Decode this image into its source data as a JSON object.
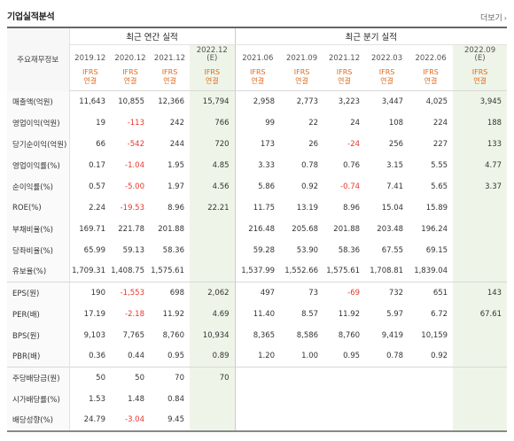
{
  "header": {
    "title": "기업실적분석",
    "more": "더보기"
  },
  "table": {
    "label_header": "주요재무정보",
    "group_annual": "최근 연간 실적",
    "group_quarter": "최근 분기 실적",
    "ifrs_top": "IFRS",
    "ifrs_bottom": "연결",
    "periods": [
      {
        "date": "2019.12",
        "est": ""
      },
      {
        "date": "2020.12",
        "est": ""
      },
      {
        "date": "2021.12",
        "est": ""
      },
      {
        "date": "2022.12",
        "est": "(E)"
      },
      {
        "date": "2021.06",
        "est": ""
      },
      {
        "date": "2021.09",
        "est": ""
      },
      {
        "date": "2021.12",
        "est": ""
      },
      {
        "date": "2022.03",
        "est": ""
      },
      {
        "date": "2022.06",
        "est": ""
      },
      {
        "date": "2022.09",
        "est": "(E)"
      }
    ],
    "rows": [
      {
        "label": "매출액(억원)",
        "values": [
          "11,643",
          "10,855",
          "12,366",
          "15,794",
          "2,958",
          "2,773",
          "3,223",
          "3,447",
          "4,025",
          "3,945"
        ]
      },
      {
        "label": "영업이익(억원)",
        "values": [
          "19",
          "-113",
          "242",
          "766",
          "99",
          "22",
          "24",
          "108",
          "224",
          "188"
        ]
      },
      {
        "label": "당기순이익(억원)",
        "values": [
          "66",
          "-542",
          "244",
          "720",
          "173",
          "26",
          "-24",
          "256",
          "227",
          "133"
        ]
      },
      {
        "label": "영업이익률(%)",
        "values": [
          "0.17",
          "-1.04",
          "1.95",
          "4.85",
          "3.33",
          "0.78",
          "0.76",
          "3.15",
          "5.55",
          "4.77"
        ]
      },
      {
        "label": "순이익률(%)",
        "values": [
          "0.57",
          "-5.00",
          "1.97",
          "4.56",
          "5.86",
          "0.92",
          "-0.74",
          "7.41",
          "5.65",
          "3.37"
        ]
      },
      {
        "label": "ROE(%)",
        "values": [
          "2.24",
          "-19.53",
          "8.96",
          "22.21",
          "11.75",
          "13.19",
          "8.96",
          "15.04",
          "15.89",
          ""
        ]
      },
      {
        "label": "부채비율(%)",
        "values": [
          "169.71",
          "221.78",
          "201.88",
          "",
          "216.48",
          "205.68",
          "201.88",
          "203.48",
          "196.24",
          ""
        ]
      },
      {
        "label": "당좌비율(%)",
        "values": [
          "65.99",
          "59.13",
          "58.36",
          "",
          "59.28",
          "53.90",
          "58.36",
          "67.55",
          "69.15",
          ""
        ]
      },
      {
        "label": "유보율(%)",
        "values": [
          "1,709.31",
          "1,408.75",
          "1,575.61",
          "",
          "1,537.99",
          "1,552.66",
          "1,575.61",
          "1,708.81",
          "1,839.04",
          ""
        ]
      },
      {
        "label": "EPS(원)",
        "values": [
          "190",
          "-1,553",
          "698",
          "2,062",
          "497",
          "73",
          "-69",
          "732",
          "651",
          "143"
        ]
      },
      {
        "label": "PER(배)",
        "values": [
          "17.19",
          "-2.18",
          "11.92",
          "4.69",
          "11.40",
          "8.57",
          "11.92",
          "5.97",
          "6.72",
          "67.61"
        ]
      },
      {
        "label": "BPS(원)",
        "values": [
          "9,103",
          "7,765",
          "8,760",
          "10,934",
          "8,365",
          "8,586",
          "8,760",
          "9,419",
          "10,159",
          ""
        ]
      },
      {
        "label": "PBR(배)",
        "values": [
          "0.36",
          "0.44",
          "0.95",
          "0.89",
          "1.20",
          "1.00",
          "0.95",
          "0.78",
          "0.92",
          ""
        ]
      },
      {
        "label": "주당배당금(원)",
        "values": [
          "50",
          "50",
          "70",
          "70",
          "",
          "",
          "",
          "",
          "",
          ""
        ]
      },
      {
        "label": "시가배당률(%)",
        "values": [
          "1.53",
          "1.48",
          "0.84",
          "",
          "",
          "",
          "",
          "",
          "",
          ""
        ]
      },
      {
        "label": "배당성향(%)",
        "values": [
          "24.79",
          "-3.04",
          "9.45",
          "",
          "",
          "",
          "",
          "",
          "",
          ""
        ]
      }
    ]
  },
  "colors": {
    "negative": "#e8372c",
    "ifrs": "#e06a1b",
    "estimate_bg": "#eef5e8"
  }
}
